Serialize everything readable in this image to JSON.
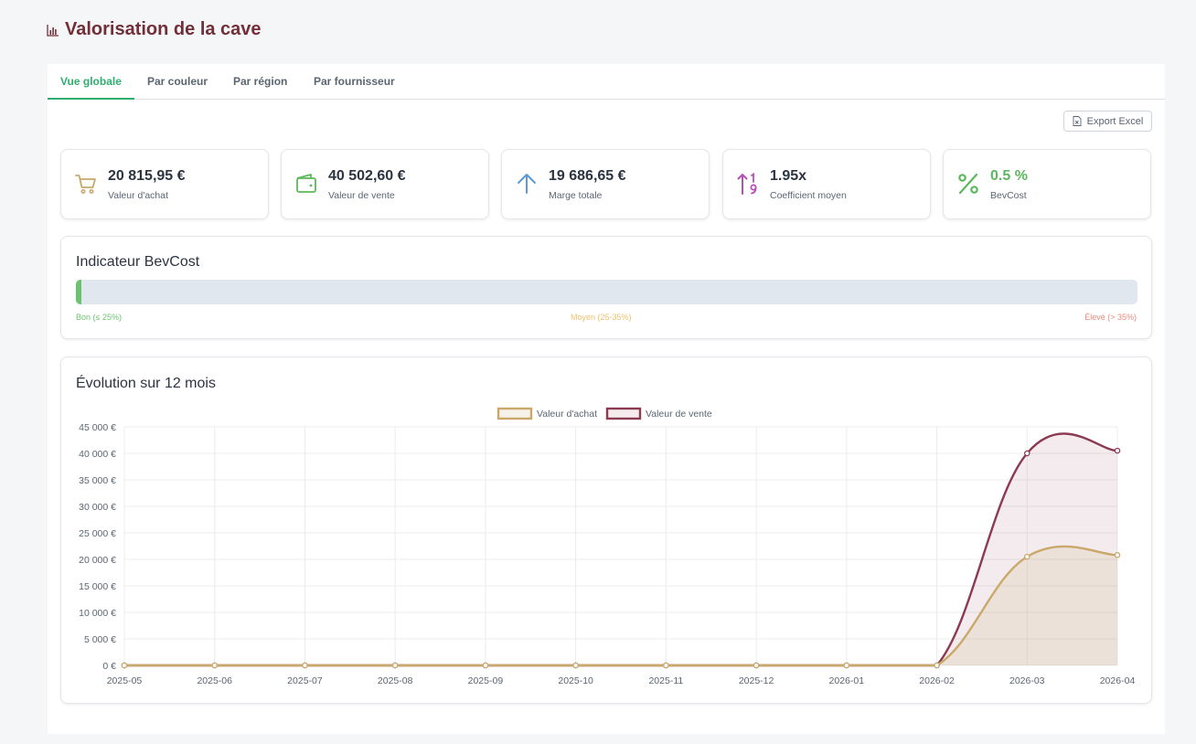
{
  "page": {
    "title": "Valorisation de la cave",
    "title_icon": "bar-chart-icon"
  },
  "tabs": [
    {
      "label": "Vue globale",
      "active": true
    },
    {
      "label": "Par couleur",
      "active": false
    },
    {
      "label": "Par région",
      "active": false
    },
    {
      "label": "Par fournisseur",
      "active": false
    }
  ],
  "toolbar": {
    "export_label": "Export Excel",
    "export_icon": "excel-file-icon"
  },
  "kpis": [
    {
      "value": "20 815,95 €",
      "label": "Valeur d'achat",
      "icon": "cart-icon",
      "color": "#c9a86a"
    },
    {
      "value": "40 502,60 €",
      "label": "Valeur de vente",
      "icon": "wallet-icon",
      "color": "#5cb85c"
    },
    {
      "value": "19 686,65 €",
      "label": "Marge totale",
      "icon": "arrow-up-icon",
      "color": "#5b9bd5"
    },
    {
      "value": "1.95x",
      "label": "Coefficient moyen",
      "icon": "sort-numeric-icon",
      "color": "#b84fb8"
    },
    {
      "value": "0.5 %",
      "label": "BevCost",
      "icon": "percent-icon",
      "color": "#5cb85c"
    }
  ],
  "bevcost": {
    "title": "Indicateur BevCost",
    "percent": 0.5,
    "scale_good": "Bon (≤ 25%)",
    "scale_medium": "Moyen (25-35%)",
    "scale_high": "Élevé (> 35%)",
    "colors": {
      "good": "#6cc36f",
      "medium": "#f0c070",
      "high": "#e88b7c"
    }
  },
  "chart_card": {
    "title": "Évolution sur 12 mois"
  },
  "chart_data": {
    "type": "line",
    "title": "Évolution sur 12 mois",
    "x": [
      "2025-05",
      "2025-06",
      "2025-07",
      "2025-08",
      "2025-09",
      "2025-10",
      "2025-11",
      "2025-12",
      "2026-01",
      "2026-02",
      "2026-03",
      "2026-04"
    ],
    "series": [
      {
        "name": "Valeur d'achat",
        "values": [
          0,
          0,
          0,
          0,
          0,
          0,
          0,
          0,
          0,
          0,
          20500,
          20816
        ],
        "color": "#c9a86a",
        "fill": "rgba(201,168,106,0.15)"
      },
      {
        "name": "Valeur de vente",
        "values": [
          0,
          0,
          0,
          0,
          0,
          0,
          0,
          0,
          0,
          0,
          40000,
          40503
        ],
        "color": "#8b3a52",
        "fill": "rgba(139,58,82,0.10)"
      }
    ],
    "y_ticks": [
      "0 €",
      "5 000 €",
      "10 000 €",
      "15 000 €",
      "20 000 €",
      "25 000 €",
      "30 000 €",
      "35 000 €",
      "40 000 €",
      "45 000 €"
    ],
    "ylim": [
      0,
      45000
    ],
    "grid": true,
    "legend": "top-center"
  }
}
